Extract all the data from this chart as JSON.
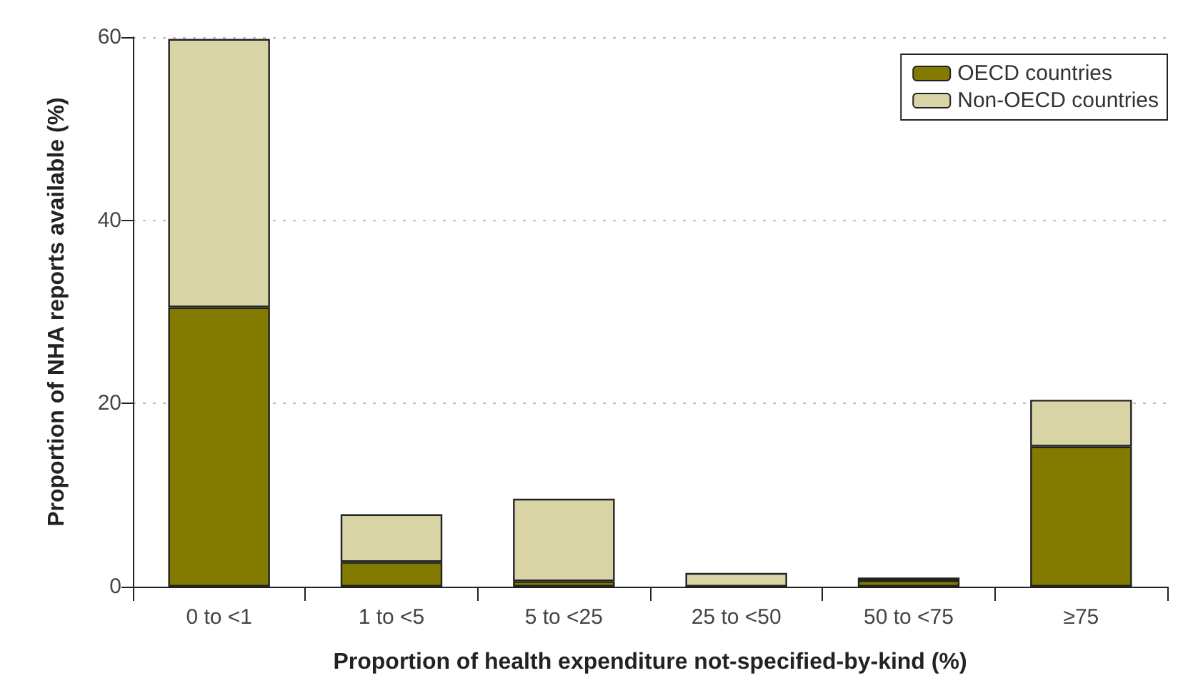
{
  "chart_data": {
    "type": "bar",
    "stacked": true,
    "xlabel": "Proportion of health expenditure not-specified-by-kind (%)",
    "ylabel": "Proportion of NHA reports available (%)",
    "categories": [
      "0 to <1",
      "1 to <5",
      "5 to <25",
      "25 to <50",
      "50 to <75",
      "≥75"
    ],
    "series": [
      {
        "name": "OECD countries",
        "color": "#837a00",
        "values": [
          30.5,
          2.7,
          0.6,
          0,
          0.7,
          15.3
        ]
      },
      {
        "name": "Non-OECD countries",
        "color": "#d8d4a6",
        "values": [
          29.3,
          5.2,
          9.0,
          1.5,
          0.3,
          5.1
        ]
      }
    ],
    "ylim": [
      0,
      60
    ],
    "yticks": [
      0,
      20,
      40,
      60
    ],
    "grid": "y",
    "legend": "top right"
  }
}
